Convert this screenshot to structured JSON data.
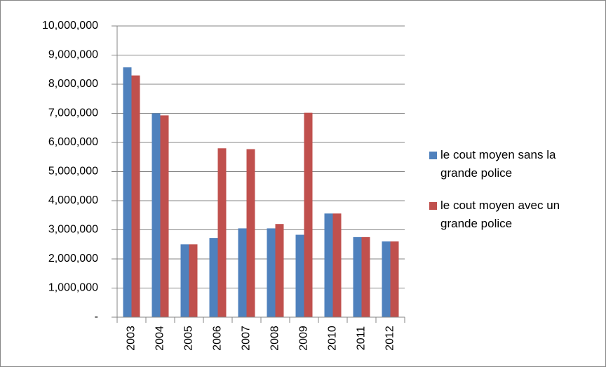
{
  "chart_data": {
    "type": "bar",
    "categories": [
      "2003",
      "2004",
      "2005",
      "2006",
      "2007",
      "2008",
      "2009",
      "2010",
      "2011",
      "2012"
    ],
    "series": [
      {
        "name": "le cout moyen sans la grande police",
        "color": "#4f81bd",
        "values": [
          8580000,
          7000000,
          2500000,
          2720000,
          3050000,
          3050000,
          2830000,
          3560000,
          2750000,
          2600000
        ]
      },
      {
        "name": "le cout moyen avec un grande police",
        "color": "#c0504d",
        "values": [
          8300000,
          6930000,
          2500000,
          5800000,
          5770000,
          3200000,
          7020000,
          3560000,
          2750000,
          2600000
        ]
      }
    ],
    "ylim": [
      0,
      10000000
    ],
    "yticks": [
      {
        "value": 0,
        "label": "-"
      },
      {
        "value": 1000000,
        "label": "1,000,000"
      },
      {
        "value": 2000000,
        "label": "2,000,000"
      },
      {
        "value": 3000000,
        "label": "3,000,000"
      },
      {
        "value": 4000000,
        "label": "4,000,000"
      },
      {
        "value": 5000000,
        "label": "5,000,000"
      },
      {
        "value": 6000000,
        "label": "6,000,000"
      },
      {
        "value": 7000000,
        "label": "7,000,000"
      },
      {
        "value": 8000000,
        "label": "8,000,000"
      },
      {
        "value": 9000000,
        "label": "9,000,000"
      },
      {
        "value": 10000000,
        "label": "10,000,000"
      }
    ],
    "grid": true,
    "legend": "right"
  }
}
